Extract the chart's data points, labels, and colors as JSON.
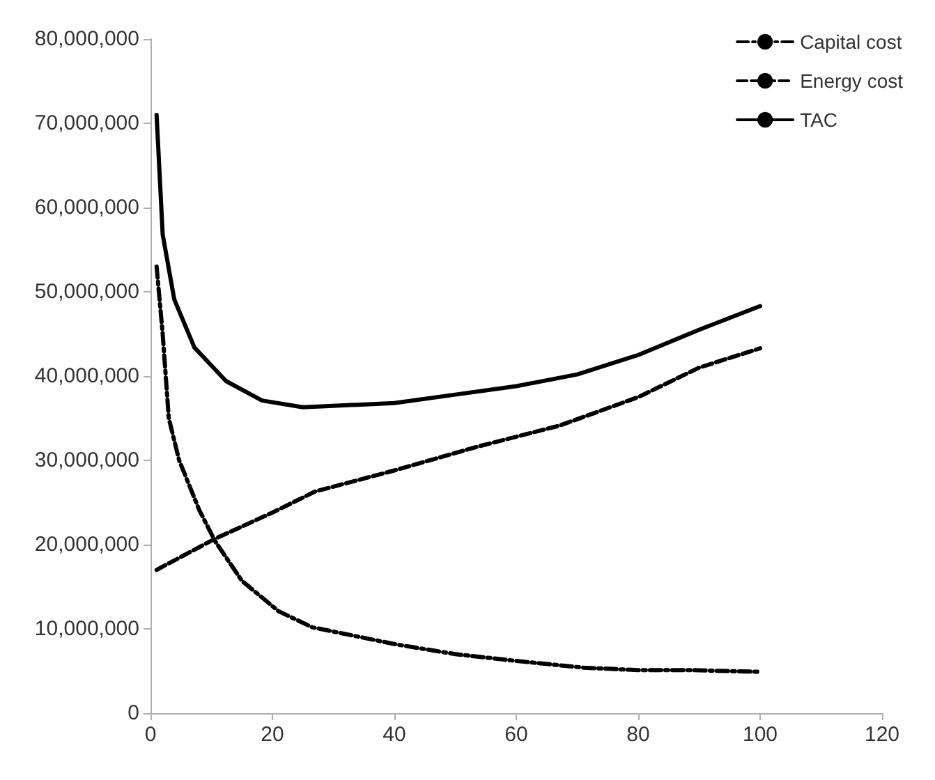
{
  "chart_data": {
    "type": "line",
    "xlim": [
      0,
      120
    ],
    "xticks": [
      0,
      20,
      40,
      60,
      80,
      100,
      120
    ],
    "ylim": [
      0,
      80000000
    ],
    "yticks": [
      0,
      {
        "value": 10000000,
        "label": "10,000,000"
      },
      {
        "value": 20000000,
        "label": "20,000,000"
      },
      {
        "value": 30000000,
        "label": "30,000,000"
      },
      {
        "value": 40000000,
        "label": "40,000,000"
      },
      {
        "value": 50000000,
        "label": "50,000,000"
      },
      {
        "value": 60000000,
        "label": "60,000,000"
      },
      {
        "value": 70000000,
        "label": "70,000,000"
      },
      {
        "value": 80000000,
        "label": "80,000,000"
      }
    ],
    "grid": false,
    "legend": "top right",
    "marker": "none",
    "series": [
      {
        "name": "Capital cost",
        "color": "#000000",
        "line_style": "dashdot",
        "x": [
          1,
          2,
          3,
          4.7,
          8,
          10.6,
          15,
          21,
          26.5,
          40,
          50,
          60,
          71,
          80,
          89,
          100
        ],
        "values": [
          53000000,
          45000000,
          35000000,
          30000000,
          24100000,
          20400000,
          15700000,
          12100000,
          10200000,
          8200000,
          7000000,
          6200000,
          5400000,
          5100000,
          5100000,
          4900000
        ]
      },
      {
        "name": "Energy cost",
        "color": "#000000",
        "line_style": "dashed",
        "x": [
          1,
          10.6,
          20,
          27,
          40,
          53.5,
          67,
          80,
          90,
          100
        ],
        "values": [
          17000000,
          20700000,
          23800000,
          26300000,
          28800000,
          31600000,
          34100000,
          37500000,
          41000000,
          43300000
        ]
      },
      {
        "name": "TAC",
        "color": "#000000",
        "line_style": "solid",
        "x": [
          1,
          2,
          3.9,
          7.2,
          12.4,
          18.3,
          25,
          40,
          50,
          60,
          70,
          80,
          90,
          100
        ],
        "values": [
          71000000,
          56800000,
          49100000,
          43400000,
          39400000,
          37100000,
          36300000,
          36800000,
          37800000,
          38800000,
          40200000,
          42500000,
          45500000,
          48300000
        ]
      }
    ]
  }
}
